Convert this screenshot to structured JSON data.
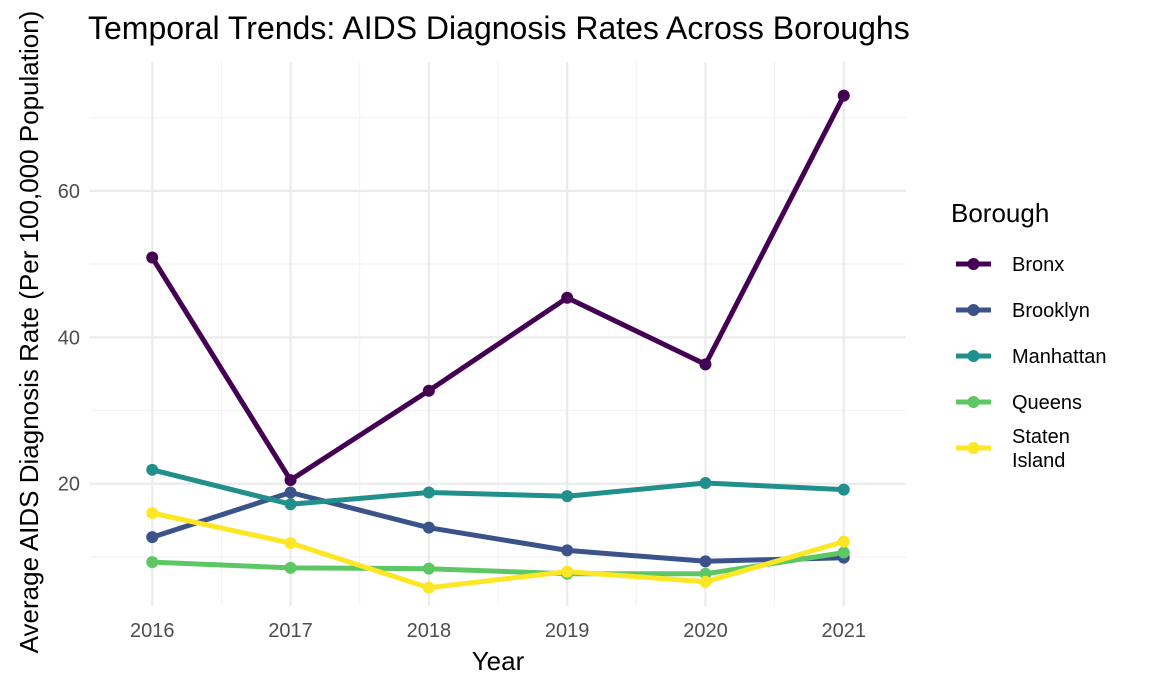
{
  "chart_data": {
    "type": "line",
    "title": "Temporal Trends: AIDS Diagnosis Rates Across Boroughs",
    "xlabel": "Year",
    "ylabel": "Average AIDS Diagnosis Rate (Per 100,000 Population)",
    "x": [
      2016,
      2017,
      2018,
      2019,
      2020,
      2021
    ],
    "xlim": [
      2015.55,
      2021.45
    ],
    "ylim": [
      3.3,
      77.6
    ],
    "y_ticks": [
      20,
      40,
      60
    ],
    "grid": true,
    "legend": {
      "title": "Borough",
      "position": "right"
    },
    "series": [
      {
        "name": "Bronx",
        "color": "#440154",
        "values": [
          50.9,
          20.5,
          32.7,
          45.4,
          36.3,
          73.0
        ]
      },
      {
        "name": "Brooklyn",
        "color": "#3B528B",
        "values": [
          12.7,
          18.8,
          14.0,
          10.9,
          9.4,
          9.9
        ]
      },
      {
        "name": "Manhattan",
        "color": "#21908C",
        "values": [
          21.9,
          17.2,
          18.8,
          18.3,
          20.1,
          19.2
        ]
      },
      {
        "name": "Queens",
        "color": "#5DC863",
        "values": [
          9.3,
          8.5,
          8.4,
          7.7,
          7.7,
          10.6
        ]
      },
      {
        "name": "Staten Island",
        "color": "#FDE725",
        "values": [
          16.0,
          11.9,
          5.8,
          8.0,
          6.6,
          12.1
        ]
      }
    ]
  }
}
